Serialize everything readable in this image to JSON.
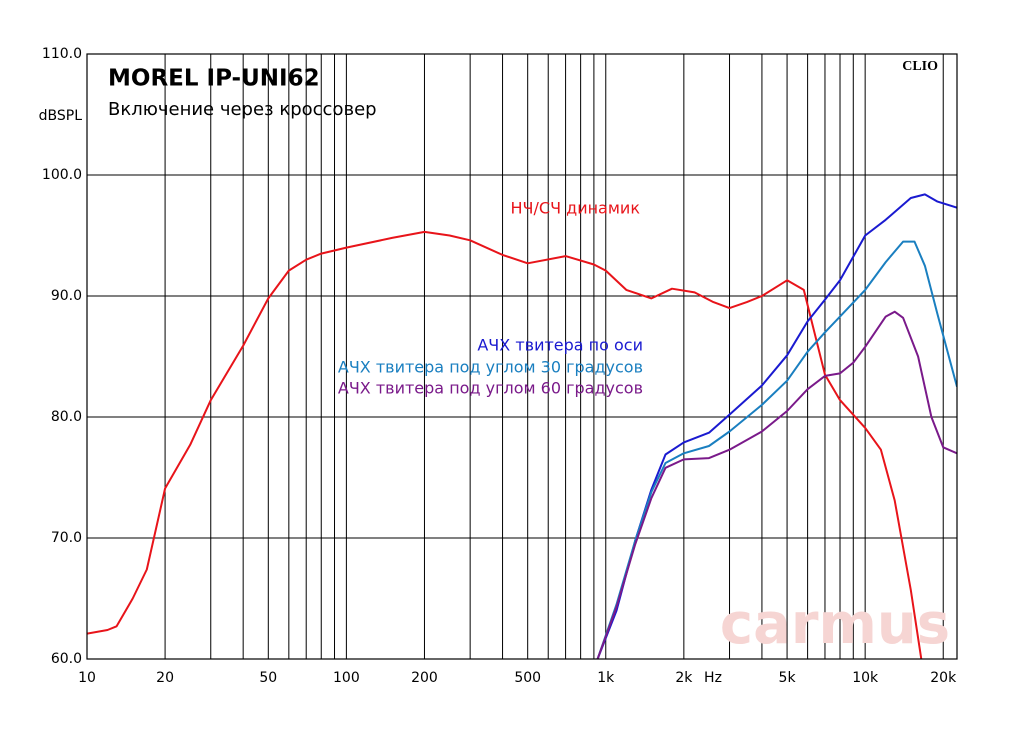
{
  "chart_data": {
    "type": "line",
    "title": "MOREL IP-UNI62",
    "subtitle": "Включение через кроссовер",
    "y_label": "dBSPL",
    "x_label": "Hz",
    "brand": "CLIO",
    "watermark": "carmus",
    "log_x": true,
    "grid": true,
    "xlim": [
      10,
      22600
    ],
    "ylim": [
      60,
      110
    ],
    "xticks": [
      10,
      20,
      50,
      100,
      200,
      500,
      {
        "value": 1000,
        "label": "1k"
      },
      {
        "value": 2000,
        "label": "2k"
      },
      {
        "value": 5000,
        "label": "5k"
      },
      {
        "value": 10000,
        "label": "10k"
      },
      {
        "value": 20000,
        "label": "20k"
      }
    ],
    "xminor": [
      30,
      40,
      60,
      70,
      80,
      90,
      300,
      400,
      600,
      700,
      800,
      900,
      3000,
      4000,
      6000,
      7000,
      8000,
      9000
    ],
    "yticks": [
      {
        "value": 60,
        "label": "60.0"
      },
      {
        "value": 70,
        "label": "70.0"
      },
      {
        "value": 80,
        "label": "80.0"
      },
      {
        "value": 90,
        "label": "90.0"
      },
      {
        "value": 100,
        "label": "100.0"
      },
      {
        "value": 110,
        "label": "110.0"
      }
    ],
    "series": [
      {
        "name": "НЧ/СЧ динамик",
        "color": "#e8141a",
        "x": [
          10,
          12,
          13,
          15,
          17,
          20,
          25,
          30,
          40,
          50,
          60,
          70,
          80,
          100,
          150,
          200,
          250,
          300,
          400,
          500,
          700,
          900,
          1000,
          1200,
          1500,
          1800,
          2200,
          2600,
          3000,
          3500,
          4000,
          5000,
          5800,
          7000,
          8000,
          10000,
          11500,
          13000,
          15000,
          16600
        ],
        "values": [
          62.1,
          62.4,
          62.7,
          65.0,
          67.4,
          74.1,
          77.7,
          81.4,
          85.9,
          89.8,
          92.1,
          93.0,
          93.5,
          94.0,
          94.8,
          95.3,
          95.0,
          94.6,
          93.4,
          92.7,
          93.3,
          92.6,
          92.1,
          90.5,
          89.8,
          90.6,
          90.3,
          89.5,
          89.0,
          89.5,
          90.0,
          91.3,
          90.5,
          83.5,
          81.4,
          79.1,
          77.3,
          73.1,
          65.7,
          59.5
        ]
      },
      {
        "name": "АЧХ твитера по оси",
        "color": "#1a1ad0",
        "x": [
          930,
          1100,
          1300,
          1500,
          1700,
          2000,
          2500,
          3000,
          4000,
          5000,
          6000,
          7000,
          8000,
          10000,
          12000,
          15000,
          17000,
          19000,
          22600
        ],
        "values": [
          60.0,
          64.0,
          69.8,
          74.0,
          76.9,
          77.9,
          78.7,
          80.2,
          82.6,
          85.1,
          87.9,
          89.7,
          91.3,
          95.0,
          96.3,
          98.1,
          98.4,
          97.8,
          97.3
        ]
      },
      {
        "name": "АЧХ твитера под углом 30 градусов",
        "color": "#1a7fc0",
        "x": [
          930,
          1100,
          1300,
          1500,
          1700,
          2000,
          2500,
          3000,
          4000,
          5000,
          6000,
          7000,
          8000,
          10000,
          12000,
          14000,
          15500,
          17000,
          19000,
          22600
        ],
        "values": [
          60.0,
          64.5,
          69.8,
          73.8,
          76.2,
          77.0,
          77.6,
          78.8,
          81.0,
          83.0,
          85.4,
          87.0,
          88.3,
          90.5,
          92.8,
          94.5,
          94.5,
          92.5,
          88.5,
          82.5
        ]
      },
      {
        "name": "АЧХ твитера под углом 60 градусов",
        "color": "#7a1a8a",
        "x": [
          930,
          1100,
          1300,
          1500,
          1700,
          2000,
          2500,
          3000,
          4000,
          5000,
          6000,
          7000,
          8000,
          9000,
          10000,
          12000,
          13000,
          14000,
          16000,
          18000,
          20000,
          22600
        ],
        "values": [
          60.0,
          64.3,
          69.5,
          73.3,
          75.8,
          76.5,
          76.6,
          77.3,
          78.8,
          80.5,
          82.3,
          83.4,
          83.6,
          84.5,
          85.8,
          88.3,
          88.7,
          88.2,
          85.0,
          80.0,
          77.5,
          77.0
        ]
      }
    ]
  }
}
